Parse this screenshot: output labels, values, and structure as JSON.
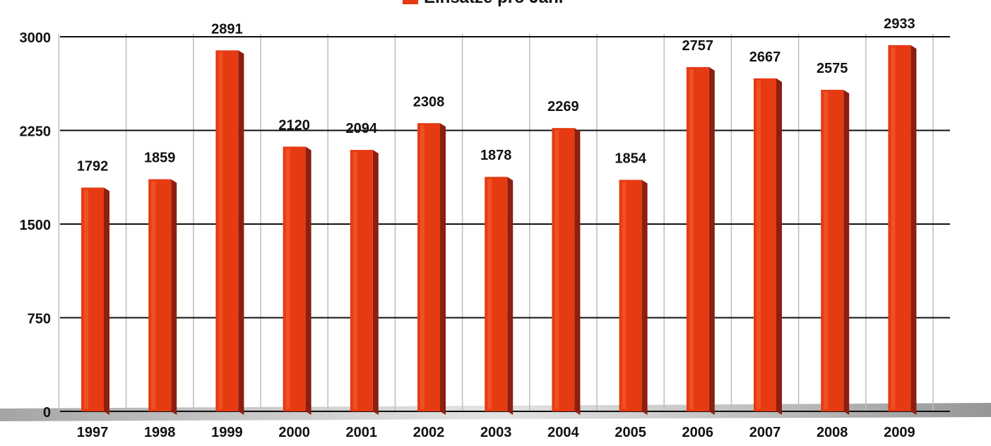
{
  "chart_data": {
    "type": "bar",
    "title": "",
    "legend": {
      "label": "Einsätze pro Jahr",
      "position": "top-center"
    },
    "categories": [
      "1997",
      "1998",
      "1999",
      "2000",
      "2001",
      "2002",
      "2003",
      "2004",
      "2005",
      "2006",
      "2007",
      "2008",
      "2009"
    ],
    "series": [
      {
        "name": "Einsätze pro Jahr",
        "values": [
          1792,
          1859,
          2891,
          2120,
          2094,
          2308,
          1878,
          2269,
          1854,
          2757,
          2667,
          2575,
          2933
        ]
      }
    ],
    "ylim": [
      0,
      3000
    ],
    "yticks": [
      "0",
      "750",
      "1500",
      "2250",
      "3000"
    ],
    "grid": "horizontal and vertical",
    "xlabel": "",
    "ylabel": "",
    "colors": {
      "bar": "#e63a12",
      "bar_side": "#8c1f10",
      "grid": "#111111",
      "vgrid": "#bdbdbd"
    }
  }
}
